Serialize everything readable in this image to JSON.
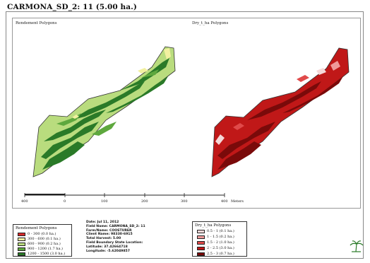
{
  "title": "CARMONA_SD_2: 11 (5.00 ha.)",
  "left_map_label": "Rendement Polygons",
  "right_map_label": "Dry_t_ha Polygons",
  "scale": {
    "labels": [
      "400",
      "0",
      "100",
      "200",
      "300",
      "400"
    ],
    "unit": "Meters"
  },
  "legend_left": {
    "title": "Rendement Polygons",
    "items": [
      {
        "range": "0 - 300",
        "area": "(0.0 ha.)",
        "color": "#d62a2a"
      },
      {
        "range": "300 - 600",
        "area": "(0.1 ha.)",
        "color": "#f2f0a0"
      },
      {
        "range": "600 - 900",
        "area": "(0.2 ha.)",
        "color": "#b9dc7e"
      },
      {
        "range": "900 - 1200",
        "area": "(1.7 ha.)",
        "color": "#5ea83e"
      },
      {
        "range": "1200 - 1500",
        "area": "(3.0 ha.)",
        "color": "#2a7a28"
      }
    ]
  },
  "legend_right": {
    "title": "Dry_t_ha Polygons",
    "items": [
      {
        "range": "0.5 - 1",
        "area": "(0.1 ha.)",
        "color": "#f5d8d8"
      },
      {
        "range": "1 - 1.5",
        "area": "(0.2 ha.)",
        "color": "#ef9a9a"
      },
      {
        "range": "1.5 - 2",
        "area": "(1.0 ha.)",
        "color": "#e04a4a"
      },
      {
        "range": "2 - 2.5",
        "area": "(3.0 ha.)",
        "color": "#c01818"
      },
      {
        "range": "2.5 - 3",
        "area": "(0.7 ha.)",
        "color": "#7a0a0a"
      }
    ]
  },
  "info": {
    "date": "Date: Jul 11, 2012",
    "field_name": "Field Name: CARMONA_SD_2: 11",
    "farm": "Farm/Name: COOSTURER",
    "client": "Client Name: 98330-6915",
    "total_harvest": "Total Harvest: 5.00",
    "boundary": "Field Boundary State Location:",
    "latitude": "Latitude: 37.42664718",
    "longitude": "Longitude: -5.62049857"
  },
  "colors": {
    "green_light": "#b9dc7e",
    "green_mid": "#5ea83e",
    "green_dark": "#2a7a28",
    "red_mid": "#c01818",
    "red_dark": "#7a0a0a"
  },
  "logo": "palm-logo-icon"
}
